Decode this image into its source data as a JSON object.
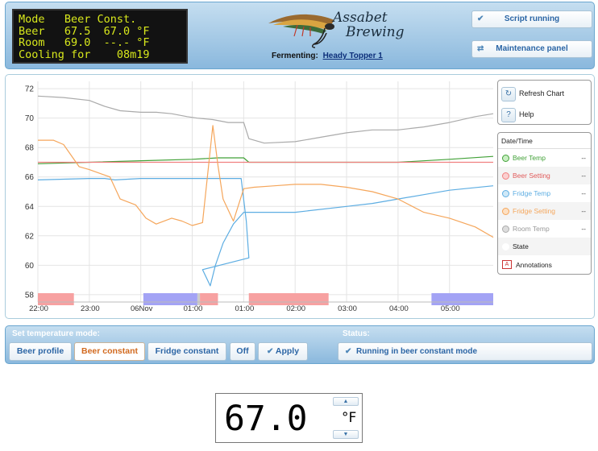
{
  "lcd": {
    "lines": [
      "Mode   Beer Const.",
      "Beer   67.5  67.0 °F",
      "Room   69.0  --.- °F",
      "Cooling for    08m19"
    ]
  },
  "header": {
    "logo_text_1": "Assabet",
    "logo_text_2": "Brewing",
    "fermenting_label": "Fermenting:",
    "beer_name": "Heady Topper 1",
    "script_button": "Script running",
    "maintenance_button": "Maintenance panel",
    "script_icon": "check-icon",
    "maintenance_icon": "link-icon"
  },
  "chart_controls": {
    "refresh_label": "Refresh Chart",
    "help_label": "Help",
    "refresh_icon": "refresh-icon",
    "help_icon": "help-icon"
  },
  "legend": {
    "header": "Date/Time",
    "items": [
      {
        "label": "Beer Temp",
        "value": "--",
        "color": "#41a137"
      },
      {
        "label": "Beer Setting",
        "value": "--",
        "color": "#f08080"
      },
      {
        "label": "Fridge Temp",
        "value": "--",
        "color": "#5dade2"
      },
      {
        "label": "Fridge Setting",
        "value": "--",
        "color": "#f5a65b"
      },
      {
        "label": "Room Temp",
        "value": "--",
        "color": "#aaaaaa"
      },
      {
        "label": "State",
        "value": "",
        "color": "#ffffff"
      }
    ],
    "annotations_label": "Annotations",
    "annotations_icon_text": "A"
  },
  "chart_data": {
    "type": "line",
    "x_tick_labels": [
      "22:00",
      "23:00",
      "06Nov",
      "01:00",
      "01:00",
      "02:00",
      "03:00",
      "04:00",
      "05:00"
    ],
    "ylim": [
      57.5,
      72.5
    ],
    "y_ticks": [
      58,
      60,
      62,
      64,
      66,
      68,
      70,
      72
    ],
    "grid": true,
    "series": [
      {
        "name": "Room Temp",
        "color": "#aaaaaa",
        "points": [
          [
            0,
            71.5
          ],
          [
            0.5,
            71.4
          ],
          [
            1.0,
            71.2
          ],
          [
            1.3,
            70.8
          ],
          [
            1.6,
            70.5
          ],
          [
            2.0,
            70.4
          ],
          [
            2.3,
            70.4
          ],
          [
            2.6,
            70.3
          ],
          [
            2.9,
            70.1
          ],
          [
            3.1,
            70.0
          ],
          [
            3.4,
            69.9
          ],
          [
            3.7,
            69.7
          ],
          [
            4.0,
            69.7
          ],
          [
            4.1,
            68.6
          ],
          [
            4.4,
            68.3
          ],
          [
            5.0,
            68.4
          ],
          [
            5.5,
            68.7
          ],
          [
            6.0,
            69.0
          ],
          [
            6.5,
            69.2
          ],
          [
            7.0,
            69.2
          ],
          [
            7.5,
            69.4
          ],
          [
            8.0,
            69.7
          ],
          [
            8.5,
            70.1
          ],
          [
            8.85,
            70.3
          ]
        ]
      },
      {
        "name": "Beer Temp",
        "color": "#41a137",
        "points": [
          [
            0,
            66.9
          ],
          [
            1.0,
            67.0
          ],
          [
            2.0,
            67.1
          ],
          [
            3.0,
            67.2
          ],
          [
            3.5,
            67.3
          ],
          [
            4.0,
            67.3
          ],
          [
            4.1,
            67.0
          ],
          [
            5.0,
            67.0
          ],
          [
            6.0,
            67.0
          ],
          [
            7.0,
            67.0
          ],
          [
            8.0,
            67.2
          ],
          [
            8.85,
            67.4
          ]
        ]
      },
      {
        "name": "Beer Setting",
        "color": "#f08080",
        "points": [
          [
            0,
            67.0
          ],
          [
            8.85,
            67.0
          ]
        ]
      },
      {
        "name": "Fridge Temp",
        "color": "#5dade2",
        "points": [
          [
            0,
            65.8
          ],
          [
            1.0,
            65.9
          ],
          [
            1.3,
            65.9
          ],
          [
            1.5,
            65.8
          ],
          [
            2.0,
            65.9
          ],
          [
            3.0,
            65.9
          ],
          [
            3.8,
            65.9
          ],
          [
            3.95,
            65.9
          ],
          [
            4.05,
            63.0
          ],
          [
            4.1,
            60.5
          ],
          [
            3.2,
            59.7
          ],
          [
            3.35,
            58.6
          ],
          [
            3.45,
            60.0
          ],
          [
            3.6,
            61.5
          ],
          [
            3.8,
            62.8
          ],
          [
            4.0,
            63.6
          ],
          [
            5.0,
            63.6
          ],
          [
            6.0,
            64.0
          ],
          [
            6.5,
            64.2
          ],
          [
            7.0,
            64.5
          ],
          [
            7.5,
            64.8
          ],
          [
            8.0,
            65.1
          ],
          [
            8.85,
            65.4
          ]
        ]
      },
      {
        "name": "Fridge Setting",
        "color": "#f5a65b",
        "points": [
          [
            0,
            68.5
          ],
          [
            0.3,
            68.5
          ],
          [
            0.5,
            68.2
          ],
          [
            0.8,
            66.7
          ],
          [
            1.0,
            66.5
          ],
          [
            1.4,
            66.0
          ],
          [
            1.6,
            64.5
          ],
          [
            1.9,
            64.1
          ],
          [
            2.1,
            63.2
          ],
          [
            2.3,
            62.8
          ],
          [
            2.6,
            63.2
          ],
          [
            2.8,
            63.0
          ],
          [
            3.0,
            62.7
          ],
          [
            3.2,
            62.9
          ],
          [
            3.4,
            69.5
          ],
          [
            3.5,
            66.8
          ],
          [
            3.6,
            64.5
          ],
          [
            3.8,
            63.0
          ],
          [
            4.0,
            65.2
          ],
          [
            4.2,
            65.3
          ],
          [
            4.6,
            65.4
          ],
          [
            5.0,
            65.5
          ],
          [
            5.5,
            65.5
          ],
          [
            6.0,
            65.3
          ],
          [
            6.5,
            65.0
          ],
          [
            7.0,
            64.5
          ],
          [
            7.5,
            63.6
          ],
          [
            8.0,
            63.2
          ],
          [
            8.5,
            62.6
          ],
          [
            8.85,
            61.9
          ]
        ]
      }
    ],
    "state_bands": [
      {
        "from": 0.0,
        "to": 0.7,
        "color": "#f7a1a1"
      },
      {
        "from": 2.05,
        "to": 3.1,
        "color": "#a3a3f5"
      },
      {
        "from": 3.1,
        "to": 3.15,
        "color": "#cccccc"
      },
      {
        "from": 3.15,
        "to": 3.5,
        "color": "#f7a1a1"
      },
      {
        "from": 4.1,
        "to": 5.65,
        "color": "#f7a1a1"
      },
      {
        "from": 7.65,
        "to": 8.85,
        "color": "#a3a3f5"
      }
    ]
  },
  "mode_panel": {
    "title": "Set temperature mode:",
    "status_title": "Status:",
    "buttons": {
      "beer_profile": "Beer profile",
      "beer_constant": "Beer constant",
      "fridge_constant": "Fridge constant",
      "off": "Off",
      "apply": "Apply"
    },
    "apply_icon": "check-icon",
    "status_text": "Running in beer constant mode",
    "status_icon": "check-icon"
  },
  "setpoint": {
    "value": "67.0",
    "unit": "°F",
    "up_icon": "chevron-up-icon",
    "down_icon": "chevron-down-icon"
  }
}
